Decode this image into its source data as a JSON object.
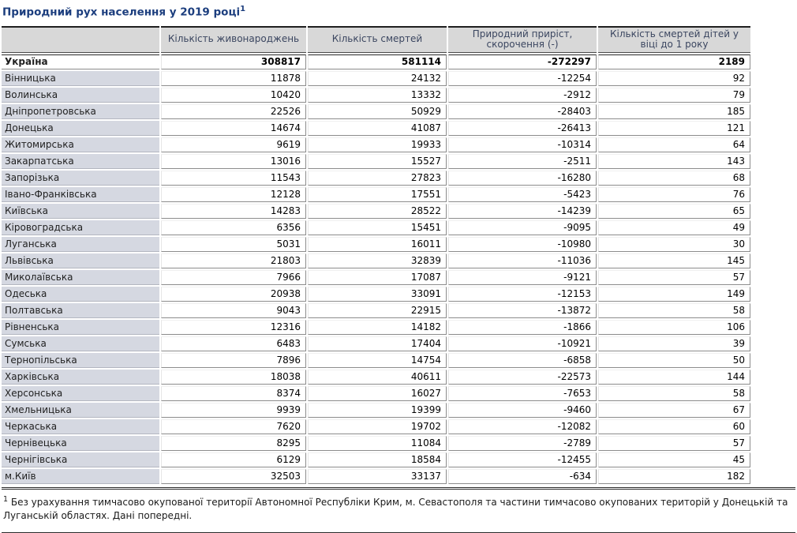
{
  "page": {
    "title": "Природний рух населення у 2019 році",
    "title_superscript": "1",
    "footnote_marker": "1",
    "footnote_text": "Без урахування тимчасово окупованої території Автономної Республіки Крим, м. Севастополя та частини тимчасово окупованих територій у Донецькій та Луганській областях. Дані попередні."
  },
  "colors": {
    "title_color": "#1c3e7e",
    "header_bg": "#d8d8d8",
    "header_text": "#3b4660",
    "label_bg": "#d5d8e1",
    "cell_border": "#8c8c8c",
    "strong_border": "#2a2a2a"
  },
  "chart_data": {
    "type": "table",
    "title": "Природний рух населення у 2019 році",
    "columns": [
      "",
      "Кількість живонароджень",
      "Кількість смертей",
      "Природний приріст, скорочення (-)",
      "Кількість смертей дітей у віці до 1 року"
    ],
    "rows": [
      {
        "label": "Україна",
        "values": [
          "308817",
          "581114",
          "-272297",
          "2189"
        ],
        "bold": true
      },
      {
        "label": "Вінницька",
        "values": [
          "11878",
          "24132",
          "-12254",
          "92"
        ],
        "bold": false
      },
      {
        "label": "Волинська",
        "values": [
          "10420",
          "13332",
          "-2912",
          "79"
        ],
        "bold": false
      },
      {
        "label": "Дніпропетровська",
        "values": [
          "22526",
          "50929",
          "-28403",
          "185"
        ],
        "bold": false
      },
      {
        "label": "Донецька",
        "values": [
          "14674",
          "41087",
          "-26413",
          "121"
        ],
        "bold": false
      },
      {
        "label": "Житомирська",
        "values": [
          "9619",
          "19933",
          "-10314",
          "64"
        ],
        "bold": false
      },
      {
        "label": "Закарпатська",
        "values": [
          "13016",
          "15527",
          "-2511",
          "143"
        ],
        "bold": false
      },
      {
        "label": "Запорізька",
        "values": [
          "11543",
          "27823",
          "-16280",
          "68"
        ],
        "bold": false
      },
      {
        "label": "Івано-Франківська",
        "values": [
          "12128",
          "17551",
          "-5423",
          "76"
        ],
        "bold": false
      },
      {
        "label": "Київська",
        "values": [
          "14283",
          "28522",
          "-14239",
          "65"
        ],
        "bold": false
      },
      {
        "label": "Кіровоградська",
        "values": [
          "6356",
          "15451",
          "-9095",
          "49"
        ],
        "bold": false
      },
      {
        "label": "Луганська",
        "values": [
          "5031",
          "16011",
          "-10980",
          "30"
        ],
        "bold": false
      },
      {
        "label": "Львівська",
        "values": [
          "21803",
          "32839",
          "-11036",
          "145"
        ],
        "bold": false
      },
      {
        "label": "Миколаївська",
        "values": [
          "7966",
          "17087",
          "-9121",
          "57"
        ],
        "bold": false
      },
      {
        "label": "Одеська",
        "values": [
          "20938",
          "33091",
          "-12153",
          "149"
        ],
        "bold": false
      },
      {
        "label": "Полтавська",
        "values": [
          "9043",
          "22915",
          "-13872",
          "58"
        ],
        "bold": false
      },
      {
        "label": "Рівненська",
        "values": [
          "12316",
          "14182",
          "-1866",
          "106"
        ],
        "bold": false
      },
      {
        "label": "Сумська",
        "values": [
          "6483",
          "17404",
          "-10921",
          "39"
        ],
        "bold": false
      },
      {
        "label": "Тернопільська",
        "values": [
          "7896",
          "14754",
          "-6858",
          "50"
        ],
        "bold": false
      },
      {
        "label": "Харківська",
        "values": [
          "18038",
          "40611",
          "-22573",
          "144"
        ],
        "bold": false
      },
      {
        "label": "Херсонська",
        "values": [
          "8374",
          "16027",
          "-7653",
          "58"
        ],
        "bold": false
      },
      {
        "label": "Хмельницька",
        "values": [
          "9939",
          "19399",
          "-9460",
          "67"
        ],
        "bold": false
      },
      {
        "label": "Черкаська",
        "values": [
          "7620",
          "19702",
          "-12082",
          "60"
        ],
        "bold": false
      },
      {
        "label": "Чернівецька",
        "values": [
          "8295",
          "11084",
          "-2789",
          "57"
        ],
        "bold": false
      },
      {
        "label": "Чернігівська",
        "values": [
          "6129",
          "18584",
          "-12455",
          "45"
        ],
        "bold": false
      },
      {
        "label": "м.Київ",
        "values": [
          "32503",
          "33137",
          "-634",
          "182"
        ],
        "bold": false
      }
    ]
  }
}
